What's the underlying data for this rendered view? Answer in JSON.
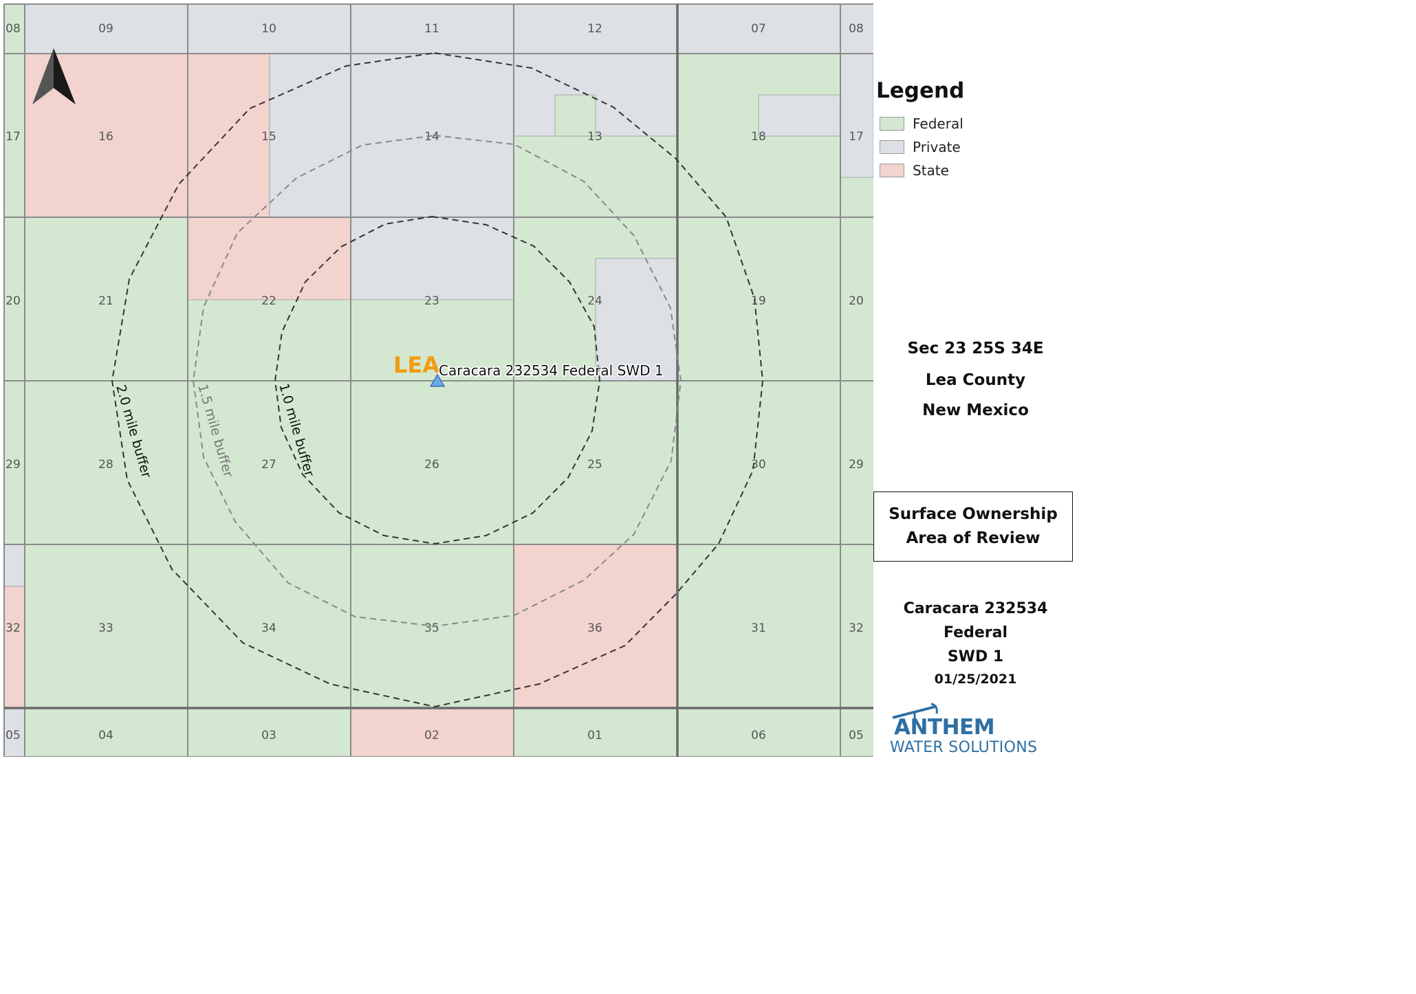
{
  "colors": {
    "federal": "#d4e8d1",
    "private": "#dde1e6",
    "state": "#f2d3ce",
    "grid": "#8a8a8a",
    "ring_dark": "#333333",
    "ring_gray": "#888888",
    "county": "#f29c12",
    "well": "#6fa8e8",
    "logo": "#2d6fa3"
  },
  "sections": [
    {
      "label": "08",
      "ownership": "federal"
    },
    {
      "label": "09",
      "ownership": "private"
    },
    {
      "label": "10",
      "ownership": "private"
    },
    {
      "label": "11",
      "ownership": "private"
    },
    {
      "label": "12",
      "ownership": "private"
    },
    {
      "label": "07",
      "ownership": "private"
    },
    {
      "label": "08",
      "ownership": "private"
    },
    {
      "label": "17",
      "ownership": "federal"
    },
    {
      "label": "16",
      "ownership": "state"
    },
    {
      "label": "15",
      "ownership": "mixed"
    },
    {
      "label": "14",
      "ownership": "private"
    },
    {
      "label": "13",
      "ownership": "mixed"
    },
    {
      "label": "18",
      "ownership": "federal"
    },
    {
      "label": "17",
      "ownership": "mixed"
    },
    {
      "label": "20",
      "ownership": "federal"
    },
    {
      "label": "21",
      "ownership": "federal"
    },
    {
      "label": "22",
      "ownership": "mixed"
    },
    {
      "label": "23",
      "ownership": "mixed"
    },
    {
      "label": "24",
      "ownership": "mixed"
    },
    {
      "label": "19",
      "ownership": "federal"
    },
    {
      "label": "20",
      "ownership": "federal"
    },
    {
      "label": "29",
      "ownership": "federal"
    },
    {
      "label": "28",
      "ownership": "federal"
    },
    {
      "label": "27",
      "ownership": "federal"
    },
    {
      "label": "26",
      "ownership": "federal"
    },
    {
      "label": "25",
      "ownership": "federal"
    },
    {
      "label": "30",
      "ownership": "federal"
    },
    {
      "label": "29",
      "ownership": "federal"
    },
    {
      "label": "32",
      "ownership": "mixed"
    },
    {
      "label": "33",
      "ownership": "federal"
    },
    {
      "label": "34",
      "ownership": "federal"
    },
    {
      "label": "35",
      "ownership": "federal"
    },
    {
      "label": "36",
      "ownership": "state"
    },
    {
      "label": "31",
      "ownership": "federal"
    },
    {
      "label": "32",
      "ownership": "federal"
    },
    {
      "label": "05",
      "ownership": "mixed"
    },
    {
      "label": "04",
      "ownership": "federal"
    },
    {
      "label": "03",
      "ownership": "federal"
    },
    {
      "label": "02",
      "ownership": "state"
    },
    {
      "label": "01",
      "ownership": "federal"
    },
    {
      "label": "06",
      "ownership": "federal"
    },
    {
      "label": "05",
      "ownership": "federal"
    }
  ],
  "buffers": [
    {
      "label": "1.0 mile buffer",
      "style": "dark"
    },
    {
      "label": "1.5 mile buffer",
      "style": "gray"
    },
    {
      "label": "2.0 mile buffer",
      "style": "dark"
    }
  ],
  "well": {
    "label": "Caracara 232534 Federal SWD 1",
    "symbol": "triangle"
  },
  "county_label": "LEA",
  "north_arrow": "north-arrow-icon",
  "legend": {
    "title": "Legend",
    "items": [
      {
        "label": "Federal",
        "color": "#d4e8d1"
      },
      {
        "label": "Private",
        "color": "#dde1e6"
      },
      {
        "label": "State",
        "color": "#f2d3ce"
      }
    ]
  },
  "location": {
    "line1": "Sec 23 25S 34E",
    "line2": "Lea County",
    "line3": "New Mexico"
  },
  "title_box": {
    "line1": "Surface Ownership",
    "line2": "Area of Review"
  },
  "well_name": {
    "line1": "Caracara 232534 Federal",
    "line2": "SWD 1"
  },
  "date": "01/25/2021",
  "logo": {
    "main": "ANTHEM",
    "sub": "WATER SOLUTIONS"
  }
}
